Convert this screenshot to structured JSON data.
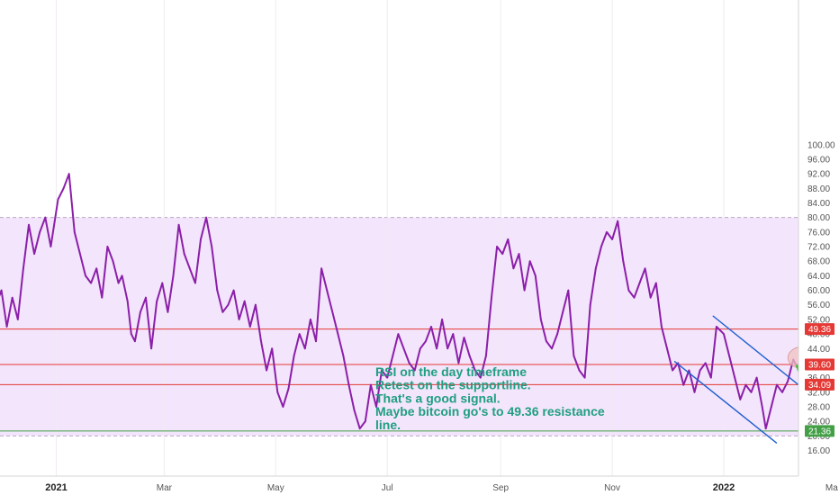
{
  "chart_data": {
    "type": "line",
    "title": "",
    "xlabel": "",
    "ylabel": "",
    "ylim": [
      12,
      102
    ],
    "y_ticks": [
      16,
      20,
      24,
      28,
      32,
      36,
      40,
      44,
      48,
      52,
      56,
      60,
      64,
      68,
      72,
      76,
      80,
      84,
      88,
      92,
      96,
      100
    ],
    "y_tick_labels": [
      "16.00",
      "20.00",
      "24.00",
      "28.00",
      "32.00",
      "36.00",
      "40.00",
      "44.00",
      "48.00",
      "52.00",
      "56.00",
      "60.00",
      "64.00",
      "68.00",
      "72.00",
      "76.00",
      "80.00",
      "84.00",
      "88.00",
      "92.00",
      "96.00",
      "100.00"
    ],
    "x_ticks": [
      {
        "label": "2021",
        "date": "2021-01-01",
        "bold": true
      },
      {
        "label": "Mar",
        "date": "2021-03-01",
        "bold": false
      },
      {
        "label": "May",
        "date": "2021-05-01",
        "bold": false
      },
      {
        "label": "Jul",
        "date": "2021-07-01",
        "bold": false
      },
      {
        "label": "Sep",
        "date": "2021-09-01",
        "bold": false
      },
      {
        "label": "Nov",
        "date": "2021-11-01",
        "bold": false
      },
      {
        "label": "2022",
        "date": "2022-01-01",
        "bold": true
      },
      {
        "label": "Ma",
        "date": "2022-03-01",
        "bold": false
      }
    ],
    "x_range": [
      "2020-11-26",
      "2022-03-09"
    ],
    "rsi_band": {
      "upper": 80,
      "lower": 20,
      "fill": "#f3e5fb"
    },
    "series": [
      {
        "color": "#8b1fa9",
        "points": [
          [
            "2020-11-26",
            62
          ],
          [
            "2020-11-29",
            56
          ],
          [
            "2020-12-02",
            60
          ],
          [
            "2020-12-05",
            50
          ],
          [
            "2020-12-08",
            58
          ],
          [
            "2020-12-11",
            52
          ],
          [
            "2020-12-14",
            66
          ],
          [
            "2020-12-17",
            78
          ],
          [
            "2020-12-20",
            70
          ],
          [
            "2020-12-23",
            76
          ],
          [
            "2020-12-26",
            80
          ],
          [
            "2020-12-29",
            72
          ],
          [
            "2021-01-02",
            85
          ],
          [
            "2021-01-05",
            88
          ],
          [
            "2021-01-08",
            92
          ],
          [
            "2021-01-11",
            76
          ],
          [
            "2021-01-14",
            70
          ],
          [
            "2021-01-17",
            64
          ],
          [
            "2021-01-20",
            62
          ],
          [
            "2021-01-23",
            66
          ],
          [
            "2021-01-26",
            58
          ],
          [
            "2021-01-29",
            72
          ],
          [
            "2021-02-01",
            68
          ],
          [
            "2021-02-04",
            62
          ],
          [
            "2021-02-06",
            64
          ],
          [
            "2021-02-09",
            57
          ],
          [
            "2021-02-11",
            48
          ],
          [
            "2021-02-13",
            46
          ],
          [
            "2021-02-16",
            54
          ],
          [
            "2021-02-19",
            58
          ],
          [
            "2021-02-22",
            44
          ],
          [
            "2021-02-25",
            57
          ],
          [
            "2021-02-28",
            62
          ],
          [
            "2021-03-03",
            54
          ],
          [
            "2021-03-06",
            64
          ],
          [
            "2021-03-09",
            78
          ],
          [
            "2021-03-12",
            70
          ],
          [
            "2021-03-15",
            66
          ],
          [
            "2021-03-18",
            62
          ],
          [
            "2021-03-21",
            74
          ],
          [
            "2021-03-24",
            80
          ],
          [
            "2021-03-27",
            72
          ],
          [
            "2021-03-30",
            60
          ],
          [
            "2021-04-02",
            54
          ],
          [
            "2021-04-05",
            56
          ],
          [
            "2021-04-08",
            60
          ],
          [
            "2021-04-11",
            52
          ],
          [
            "2021-04-14",
            57
          ],
          [
            "2021-04-17",
            50
          ],
          [
            "2021-04-20",
            56
          ],
          [
            "2021-04-23",
            46
          ],
          [
            "2021-04-26",
            38
          ],
          [
            "2021-04-29",
            44
          ],
          [
            "2021-05-02",
            32
          ],
          [
            "2021-05-05",
            28
          ],
          [
            "2021-05-08",
            33
          ],
          [
            "2021-05-11",
            42
          ],
          [
            "2021-05-14",
            48
          ],
          [
            "2021-05-17",
            44
          ],
          [
            "2021-05-20",
            52
          ],
          [
            "2021-05-23",
            46
          ],
          [
            "2021-05-26",
            66
          ],
          [
            "2021-05-29",
            60
          ],
          [
            "2021-06-01",
            54
          ],
          [
            "2021-06-04",
            48
          ],
          [
            "2021-06-07",
            42
          ],
          [
            "2021-06-10",
            34
          ],
          [
            "2021-06-13",
            27
          ],
          [
            "2021-06-16",
            22
          ],
          [
            "2021-06-19",
            24
          ],
          [
            "2021-06-22",
            34
          ],
          [
            "2021-06-25",
            28
          ],
          [
            "2021-06-28",
            38
          ],
          [
            "2021-07-01",
            36
          ],
          [
            "2021-07-04",
            42
          ],
          [
            "2021-07-07",
            48
          ],
          [
            "2021-07-10",
            44
          ],
          [
            "2021-07-13",
            40
          ],
          [
            "2021-07-16",
            38
          ],
          [
            "2021-07-19",
            44
          ],
          [
            "2021-07-22",
            46
          ],
          [
            "2021-07-25",
            50
          ],
          [
            "2021-07-28",
            44
          ],
          [
            "2021-07-31",
            52
          ],
          [
            "2021-08-03",
            44
          ],
          [
            "2021-08-06",
            48
          ],
          [
            "2021-08-09",
            40
          ],
          [
            "2021-08-12",
            47
          ],
          [
            "2021-08-15",
            42
          ],
          [
            "2021-08-18",
            38
          ],
          [
            "2021-08-21",
            36
          ],
          [
            "2021-08-24",
            42
          ],
          [
            "2021-08-27",
            58
          ],
          [
            "2021-08-30",
            72
          ],
          [
            "2021-09-02",
            70
          ],
          [
            "2021-09-05",
            74
          ],
          [
            "2021-09-08",
            66
          ],
          [
            "2021-09-11",
            70
          ],
          [
            "2021-09-14",
            60
          ],
          [
            "2021-09-17",
            68
          ],
          [
            "2021-09-20",
            64
          ],
          [
            "2021-09-23",
            52
          ],
          [
            "2021-09-26",
            46
          ],
          [
            "2021-09-29",
            44
          ],
          [
            "2021-10-02",
            48
          ],
          [
            "2021-10-05",
            54
          ],
          [
            "2021-10-08",
            60
          ],
          [
            "2021-10-11",
            42
          ],
          [
            "2021-10-14",
            38
          ],
          [
            "2021-10-17",
            36
          ],
          [
            "2021-10-20",
            56
          ],
          [
            "2021-10-23",
            66
          ],
          [
            "2021-10-26",
            72
          ],
          [
            "2021-10-29",
            76
          ],
          [
            "2021-11-01",
            74
          ],
          [
            "2021-11-04",
            79
          ],
          [
            "2021-11-07",
            68
          ],
          [
            "2021-11-10",
            60
          ],
          [
            "2021-11-13",
            58
          ],
          [
            "2021-11-16",
            62
          ],
          [
            "2021-11-19",
            66
          ],
          [
            "2021-11-22",
            58
          ],
          [
            "2021-11-25",
            62
          ],
          [
            "2021-11-28",
            50
          ],
          [
            "2021-12-01",
            44
          ],
          [
            "2021-12-04",
            38
          ],
          [
            "2021-12-07",
            40
          ],
          [
            "2021-12-10",
            34
          ],
          [
            "2021-12-13",
            38
          ],
          [
            "2021-12-16",
            32
          ],
          [
            "2021-12-19",
            38
          ],
          [
            "2021-12-22",
            40
          ],
          [
            "2021-12-25",
            36
          ],
          [
            "2021-12-28",
            50
          ],
          [
            "2022-01-01",
            48
          ],
          [
            "2022-01-04",
            42
          ],
          [
            "2022-01-07",
            36
          ],
          [
            "2022-01-10",
            30
          ],
          [
            "2022-01-13",
            34
          ],
          [
            "2022-01-16",
            32
          ],
          [
            "2022-01-19",
            36
          ],
          [
            "2022-01-22",
            28
          ],
          [
            "2022-01-24",
            22
          ],
          [
            "2022-01-27",
            28
          ],
          [
            "2022-01-30",
            34
          ],
          [
            "2022-02-02",
            32
          ],
          [
            "2022-02-05",
            35
          ],
          [
            "2022-02-08",
            41
          ],
          [
            "2022-02-10",
            39
          ],
          [
            "2022-02-11",
            40
          ]
        ]
      }
    ],
    "levels": [
      {
        "value": 49.36,
        "label": "49.36",
        "color": "#e53935"
      },
      {
        "value": 39.6,
        "label": "39.60",
        "color": "#e53935"
      },
      {
        "value": 34.09,
        "label": "34.09",
        "color": "#e53935"
      },
      {
        "value": 21.36,
        "label": "21.36",
        "color": "#43a047"
      }
    ],
    "trendlines": [
      {
        "color": "#1e5fcf",
        "from": [
          "2021-12-26",
          53
        ],
        "to": [
          "2022-02-27",
          27.5
        ]
      },
      {
        "color": "#1e5fcf",
        "from": [
          "2021-12-05",
          40.5
        ],
        "to": [
          "2022-01-30",
          18
        ]
      }
    ],
    "highlight_ellipse": {
      "date": "2022-02-13",
      "value": 41.5,
      "fill": "#f0c2c2"
    },
    "arrow": {
      "color": "#22c11d",
      "from": [
        "2022-02-22",
        35
      ],
      "to": [
        "2022-02-10",
        39.2
      ]
    },
    "annotation": {
      "color": "#1f9e82",
      "lines": [
        "RSI on the day timeframe",
        "Retest on the supportline.",
        "That's a good signal.",
        "Maybe bitcoin go's to 49.36 resistance",
        "line."
      ]
    }
  }
}
